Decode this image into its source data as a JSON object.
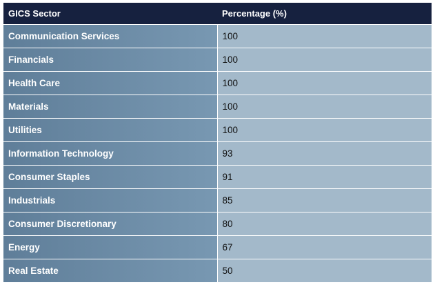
{
  "table": {
    "headers": [
      "GICS Sector",
      "Percentage (%)"
    ],
    "rows": [
      {
        "sector": "Communication Services",
        "percentage": "100"
      },
      {
        "sector": "Financials",
        "percentage": "100"
      },
      {
        "sector": "Health Care",
        "percentage": "100"
      },
      {
        "sector": "Materials",
        "percentage": "100"
      },
      {
        "sector": "Utilities",
        "percentage": "100"
      },
      {
        "sector": "Information Technology",
        "percentage": "93"
      },
      {
        "sector": "Consumer Staples",
        "percentage": "91"
      },
      {
        "sector": "Industrials",
        "percentage": "85"
      },
      {
        "sector": "Consumer Discretionary",
        "percentage": "80"
      },
      {
        "sector": "Energy",
        "percentage": "67"
      },
      {
        "sector": "Real Estate",
        "percentage": "50"
      }
    ]
  },
  "colors": {
    "header_bg": "#16213f",
    "sector_col_bg": "#6a8aa4",
    "value_col_bg": "#a3b9ca"
  }
}
